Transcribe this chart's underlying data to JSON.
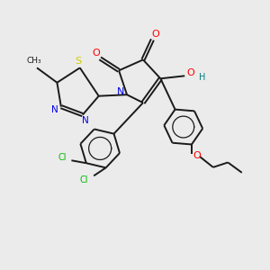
{
  "background_color": "#ebebeb",
  "bond_color": "#1a1a1a",
  "colors": {
    "N": "#0000ee",
    "O": "#ff0000",
    "S": "#cccc00",
    "Cl": "#00bb00",
    "H": "#008080",
    "C": "#1a1a1a"
  }
}
